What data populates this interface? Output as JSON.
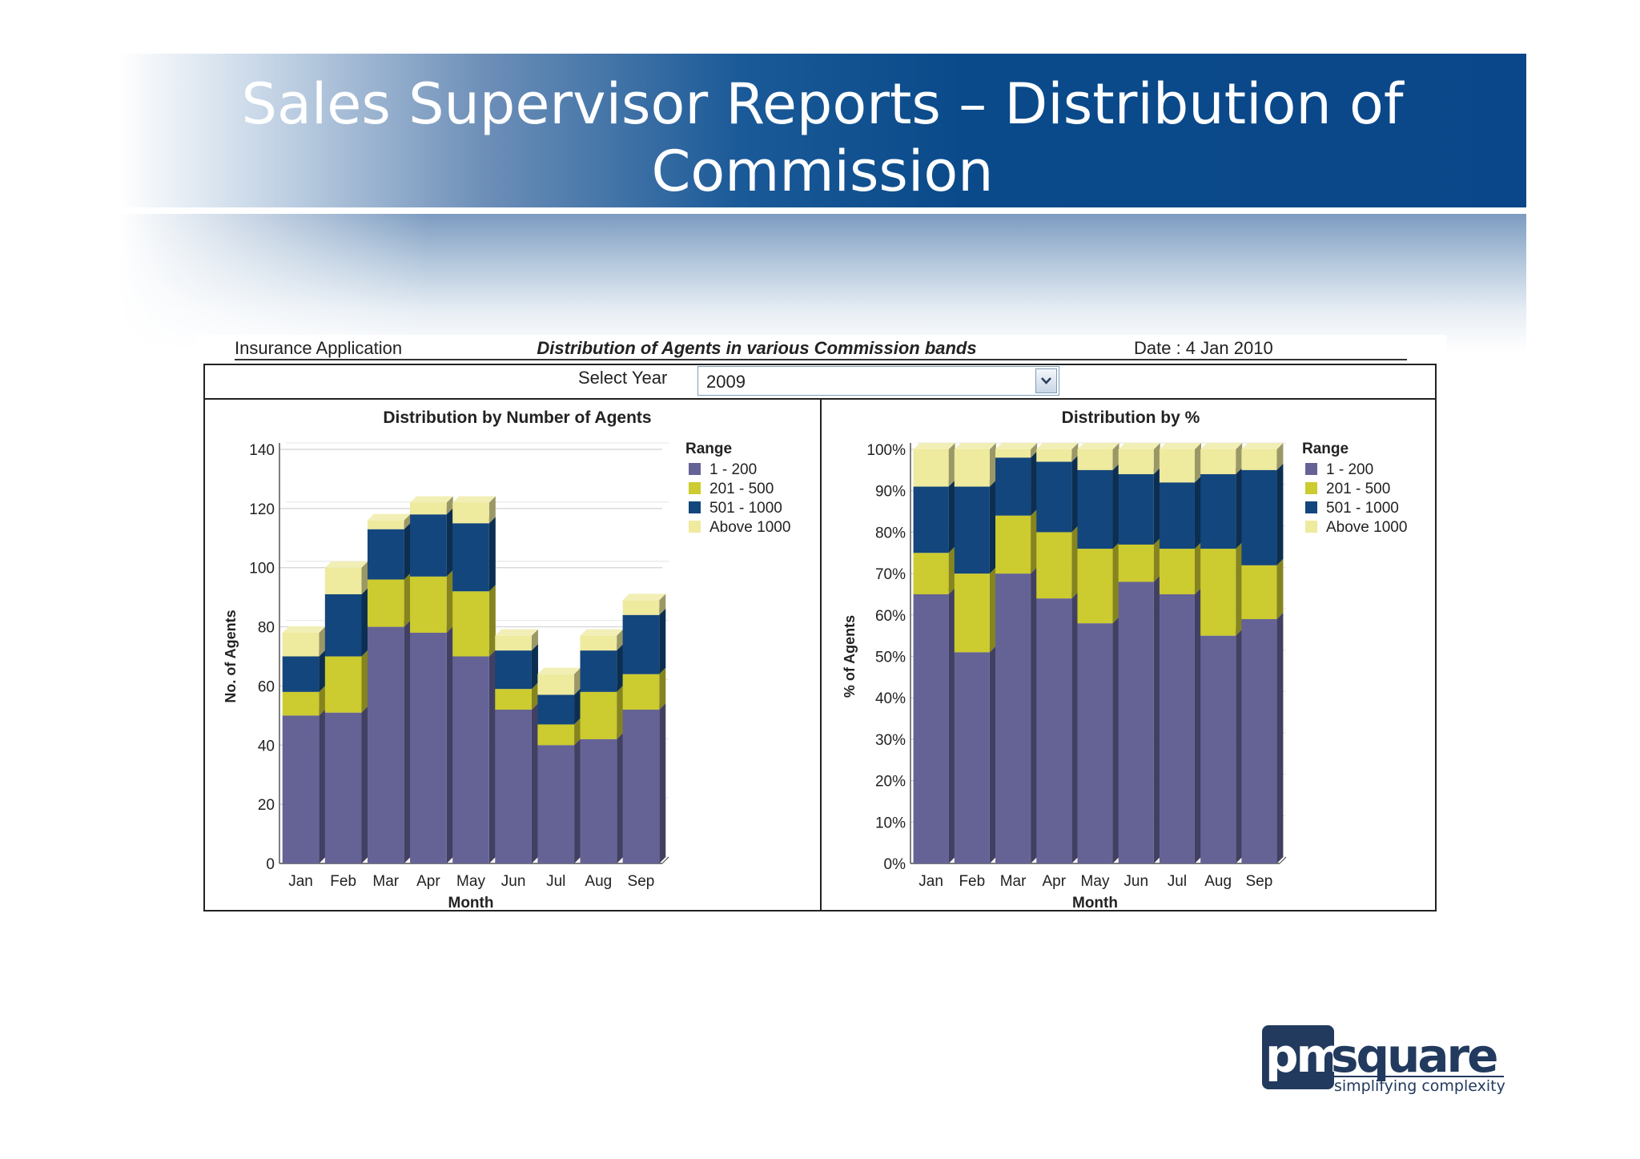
{
  "slide": {
    "title": "Sales Supervisor Reports – Distribution of Commission"
  },
  "report": {
    "app_name": "Insurance Application",
    "title": "Distribution of Agents in various Commission bands",
    "date_label": "Date : 4 Jan 2010"
  },
  "year_select": {
    "label": "Select Year",
    "value": "2009"
  },
  "logo": {
    "word": "pmsquare",
    "tagline": "simplifying complexity"
  },
  "colors": {
    "band_1_200": "#656396",
    "band_201_500": "#cccb2f",
    "band_501_1000": "#13467c",
    "band_above_1000": "#eeea9e",
    "banner": "#0a478a"
  },
  "chart_data": [
    {
      "type": "bar",
      "stacked": true,
      "title": "Distribution by Number of  Agents",
      "xlabel": "Month",
      "ylabel": "No. of Agents",
      "ylim": [
        0,
        140
      ],
      "yticks": [
        "0",
        "20",
        "40",
        "60",
        "80",
        "100",
        "120",
        "140"
      ],
      "categories": [
        "Jan",
        "Feb",
        "Mar",
        "Apr",
        "May",
        "Jun",
        "Jul",
        "Aug",
        "Sep"
      ],
      "legend_title": "Range",
      "legend_position": "right",
      "grid": true,
      "series": [
        {
          "name": "1  -  200",
          "values": [
            50,
            51,
            80,
            78,
            70,
            52,
            40,
            42,
            52
          ]
        },
        {
          "name": "201  -  500",
          "values": [
            8,
            19,
            16,
            19,
            22,
            7,
            7,
            16,
            12
          ]
        },
        {
          "name": "501  -  1000",
          "values": [
            12,
            21,
            17,
            21,
            23,
            13,
            10,
            14,
            20
          ]
        },
        {
          "name": "Above 1000",
          "values": [
            8,
            9,
            3,
            4,
            7,
            5,
            7,
            5,
            5
          ]
        }
      ]
    },
    {
      "type": "bar",
      "stacked": true,
      "title": "Distribution by %",
      "xlabel": "Month",
      "ylabel": "% of Agents",
      "ylim": [
        0,
        100
      ],
      "yticks": [
        "0%",
        "10%",
        "20%",
        "30%",
        "40%",
        "50%",
        "60%",
        "70%",
        "80%",
        "90%",
        "100%"
      ],
      "categories": [
        "Jan",
        "Feb",
        "Mar",
        "Apr",
        "May",
        "Jun",
        "Jul",
        "Aug",
        "Sep"
      ],
      "legend_title": "Range",
      "legend_position": "right",
      "grid": true,
      "series": [
        {
          "name": "1  -  200",
          "values": [
            65,
            51,
            70,
            64,
            58,
            68,
            65,
            55,
            59
          ]
        },
        {
          "name": "201  -  500",
          "values": [
            10,
            19,
            14,
            16,
            18,
            9,
            11,
            21,
            13
          ]
        },
        {
          "name": "501  -  1000",
          "values": [
            16,
            21,
            14,
            17,
            19,
            17,
            16,
            18,
            23
          ]
        },
        {
          "name": "Above 1000",
          "values": [
            9,
            9,
            2,
            3,
            5,
            6,
            8,
            6,
            5
          ]
        }
      ]
    }
  ]
}
